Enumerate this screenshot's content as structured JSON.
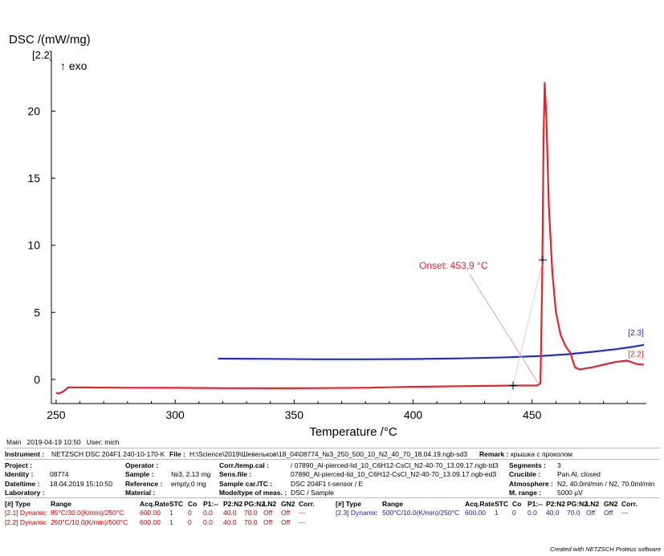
{
  "chart_data": {
    "type": "line",
    "ylabel": "DSC /(mW/mg)",
    "ylabel_segment": "[2.2]",
    "exo_label": "↑ exo",
    "xlabel": "Temperature /°C",
    "xlim": [
      248,
      498
    ],
    "ylim": [
      -1.8,
      23.5
    ],
    "xticks": [
      250,
      300,
      350,
      400,
      450
    ],
    "yticks": [
      0,
      5,
      10,
      15,
      20
    ],
    "grid": false,
    "series": [
      {
        "name": "[2.2]",
        "color": "#e3242b",
        "x": [
          250,
          251,
          253,
          255,
          260,
          280,
          300,
          320,
          350,
          380,
          400,
          420,
          440,
          452,
          453.5,
          454.2,
          454.8,
          455.3,
          456,
          457,
          458.5,
          460,
          462,
          464,
          466,
          468,
          470,
          475,
          480,
          485,
          490,
          494,
          497
        ],
        "y": [
          -1.0,
          -1.05,
          -0.9,
          -0.6,
          -0.6,
          -0.62,
          -0.63,
          -0.65,
          -0.66,
          -0.62,
          -0.55,
          -0.5,
          -0.46,
          -0.45,
          -0.3,
          7.0,
          18.0,
          22.1,
          19.5,
          13.0,
          8.0,
          5.0,
          3.3,
          2.5,
          2.0,
          0.9,
          0.75,
          0.9,
          1.1,
          1.3,
          1.4,
          1.15,
          1.1
        ]
      },
      {
        "name": "[2.3]",
        "color": "#1f2fc4",
        "x": [
          318,
          340,
          360,
          380,
          400,
          420,
          440,
          455,
          465,
          475,
          485,
          492,
          497
        ],
        "y": [
          1.55,
          1.53,
          1.5,
          1.5,
          1.52,
          1.57,
          1.65,
          1.76,
          1.88,
          2.05,
          2.25,
          2.42,
          2.58
        ]
      }
    ],
    "annotation": {
      "text": "Onset: 453.9 °C",
      "x": 453.9,
      "y": -0.45
    },
    "tangent_marks": [
      {
        "x": 442,
        "y": -0.46
      },
      {
        "x": 454.5,
        "y": 8.9
      }
    ]
  },
  "footer": {
    "main_label": "Main",
    "main_datetime": "2019-04-19 10:50",
    "user": "User: mich"
  },
  "info": {
    "instrument_label": "Instrument :",
    "instrument_value": "NETZSCH DSC 204F1 240-10-170-K",
    "file_label": "File :",
    "file_value": "H:\\Science\\2019\\Шевельков\\18_04\\08774_№3_250_500_10_N2_40_70_18.04.19.ngb-sd3",
    "remark_label": "Remark :",
    "remark_value": "крышка с проколом",
    "project_label": "Project :",
    "project_value": "",
    "operator_label": "Operator :",
    "operator_value": "",
    "corr_label": "Corr./temp.cal :",
    "corr_value": "/ 07890_Al-pierced-lid_10_C6H12-CsCl_N2-40-70_13.09.17.ngb-td3",
    "segments_label": "Segments :",
    "segments_value": "3",
    "identity_label": "Identity :",
    "identity_value": "08774",
    "sample_label": "Sample :",
    "sample_value": "№3, 2.13 mg",
    "sensfile_label": "Sens.file :",
    "sensfile_value": "07890_Al-pierced-lid_10_C6H12-CsCl_N2-40-70_13.09.17.ngb-ed3",
    "crucible_label": "Crucible :",
    "crucible_value": "Pan Al, closed",
    "datetime_label": "Date/time :",
    "datetime_value": "18.04.2019 15:10:50",
    "reference_label": "Reference :",
    "reference_value": "empty,0 mg",
    "samplecar_label": "Sample car./TC :",
    "samplecar_value": "DSC 204F1 t-sensor / E",
    "atmosphere_label": "Atmosphere :",
    "atmosphere_value": "N2, 40.0ml/min / N2, 70.0ml/min",
    "laboratory_label": "Laboratory :",
    "laboratory_value": "",
    "material_label": "Material :",
    "material_value": "",
    "mode_label": "Mode/type of meas. :",
    "mode_value": "DSC / Sample",
    "mrange_label": "M. range :",
    "mrange_value": "5000 µV",
    "headers": [
      "[#] Type",
      "Range",
      "Acq.Rate",
      "STC",
      "Co",
      "P1:--",
      "P2:N2",
      "PG:N2",
      "LN2",
      "GN2",
      "Corr."
    ],
    "segments_rows": [
      [
        "[2.1] Dynamic",
        "85°C/30.0(K/min)/250°C",
        "600.00",
        "1",
        "0",
        "0.0",
        "40.0",
        "70.0",
        "Off",
        "Off",
        "---"
      ],
      [
        "[2.2] Dynamic",
        "250°C/10.0(K/min)/500°C",
        "600.00",
        "1",
        "0",
        "0.0",
        "40.0",
        "70.0",
        "Off",
        "Off",
        "---"
      ]
    ],
    "segments_rows_right": [
      [
        "[2.3] Dynamic",
        "500°C/10.0(K/min)/250°C",
        "600.00",
        "1",
        "0",
        "0.0",
        "40.0",
        "70.0",
        "Off",
        "Off",
        "---"
      ]
    ]
  },
  "credit": "Created with NETZSCH Proteus software"
}
